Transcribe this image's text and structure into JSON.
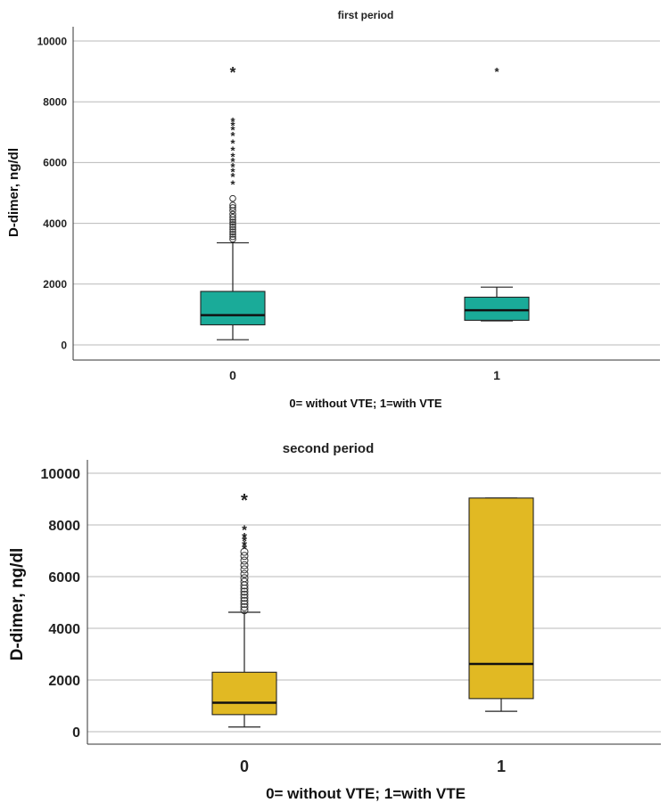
{
  "chart_data": [
    {
      "type": "boxplot",
      "title": "first period",
      "xlabel": "0= without VTE; 1=with VTE",
      "ylabel": "D-dimer, ng/dl",
      "ylim": [
        -500,
        10500
      ],
      "yticks": [
        "0",
        "2000",
        "4000",
        "6000",
        "8000",
        "10000"
      ],
      "grid": true,
      "color": "#1aab99",
      "categories": [
        "0",
        "1"
      ],
      "boxes": [
        {
          "category": "0",
          "min": 170,
          "q1": 660,
          "median": 980,
          "q3": 1760,
          "max": 3360,
          "outliers_circle": [
            3480,
            3560,
            3640,
            3720,
            3800,
            3880,
            3960,
            4040,
            4120,
            4200,
            4300,
            4420,
            4520,
            4600,
            4820
          ],
          "outliers_star": [
            5300,
            5560,
            5720,
            5880,
            6060,
            6220,
            6420,
            6660,
            6900,
            7100,
            7240,
            7380,
            9020
          ]
        },
        {
          "category": "1",
          "min": 790,
          "q1": 810,
          "median": 1140,
          "q3": 1570,
          "max": 1900,
          "outliers_circle": [],
          "outliers_star": [
            9020
          ]
        }
      ]
    },
    {
      "type": "boxplot",
      "title": "second period",
      "xlabel": "0= without VTE; 1=with VTE",
      "ylabel": "D-dimer, ng/dl",
      "ylim": [
        -500,
        10500
      ],
      "yticks": [
        "0",
        "2000",
        "4000",
        "6000",
        "8000",
        "10000"
      ],
      "grid": true,
      "color": "#e1b923",
      "categories": [
        "0",
        "1"
      ],
      "boxes": [
        {
          "category": "0",
          "min": 180,
          "q1": 660,
          "median": 1120,
          "q3": 2300,
          "max": 4620,
          "outliers_circle": [
            4700,
            4820,
            4940,
            5060,
            5180,
            5300,
            5420,
            5540,
            5660,
            5800,
            5940,
            6100,
            6280,
            6440,
            6620,
            6800,
            6960
          ],
          "outliers_star": [
            7120,
            7260,
            7420,
            7560,
            7860,
            9020
          ]
        },
        {
          "category": "1",
          "min": 790,
          "q1": 1280,
          "median": 2620,
          "q3": 9040,
          "max": 9040,
          "outliers_circle": [],
          "outliers_star": []
        }
      ]
    }
  ]
}
